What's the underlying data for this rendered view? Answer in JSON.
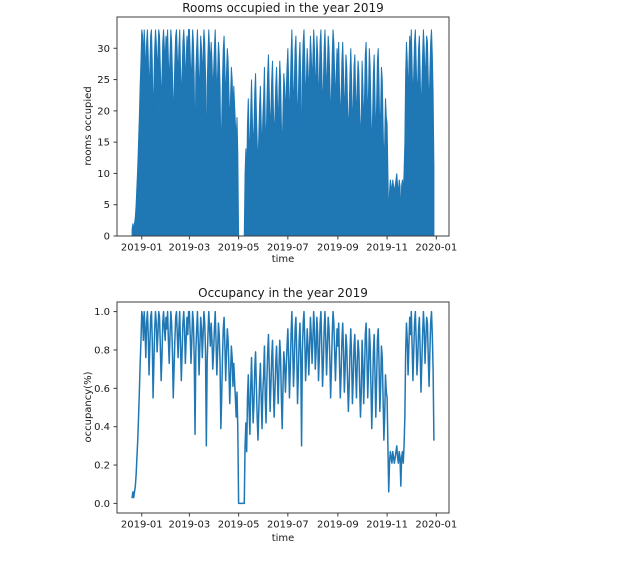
{
  "figure": {
    "background": "#ffffff",
    "accent_color": "#1f77b4"
  },
  "chart_data": [
    {
      "type": "area",
      "title": "Rooms occupied in the year 2019",
      "xlabel": "time",
      "ylabel": "rooms occupied",
      "x_start_date": "2018-12-20",
      "x_unit": "day",
      "ylim": [
        0,
        35
      ],
      "y_ticks": [
        "0",
        "5",
        "10",
        "15",
        "20",
        "25",
        "30"
      ],
      "x_ticks": [
        {
          "label": "2019-01",
          "day_index": 12
        },
        {
          "label": "2019-03",
          "day_index": 71
        },
        {
          "label": "2019-05",
          "day_index": 132
        },
        {
          "label": "2019-07",
          "day_index": 193
        },
        {
          "label": "2019-09",
          "day_index": 255
        },
        {
          "label": "2019-11",
          "day_index": 316
        },
        {
          "label": "2020-01",
          "day_index": 377
        }
      ],
      "values": [
        1,
        2,
        1,
        2,
        3,
        5,
        8,
        11,
        15,
        19,
        24,
        28,
        33,
        32,
        28,
        33,
        30,
        25,
        31,
        33,
        29,
        22,
        27,
        32,
        33,
        28,
        18,
        24,
        30,
        33,
        31,
        26,
        29,
        33,
        32,
        27,
        21,
        25,
        31,
        33,
        30,
        28,
        32,
        30,
        33,
        28,
        24,
        29,
        33,
        31,
        26,
        18,
        23,
        28,
        32,
        33,
        29,
        25,
        30,
        33,
        27,
        21,
        26,
        31,
        33,
        30,
        24,
        28,
        32,
        29,
        33,
        33,
        29,
        24,
        28,
        33,
        31,
        25,
        12,
        26,
        30,
        33,
        28,
        22,
        27,
        32,
        30,
        25,
        29,
        33,
        31,
        26,
        10,
        24,
        29,
        33,
        30,
        27,
        31,
        28,
        23,
        26,
        30,
        33,
        28,
        22,
        26,
        31,
        29,
        24,
        13,
        18,
        25,
        30,
        32,
        27,
        21,
        26,
        30,
        28,
        23,
        17,
        22,
        27,
        25,
        20,
        24,
        21,
        18,
        15,
        19,
        13,
        0,
        0,
        0,
        0,
        0,
        0,
        0,
        0,
        10,
        14,
        9,
        18,
        22,
        16,
        12,
        20,
        25,
        19,
        14,
        17,
        23,
        26,
        20,
        15,
        11,
        16,
        21,
        24,
        18,
        13,
        19,
        22,
        27,
        18,
        14,
        21,
        26,
        29,
        23,
        16,
        20,
        25,
        28,
        21,
        15,
        19,
        24,
        27,
        22,
        17,
        23,
        28,
        25,
        18,
        13,
        20,
        26,
        24,
        19,
        23,
        27,
        30,
        25,
        18,
        23,
        29,
        33,
        27,
        20,
        24,
        30,
        32,
        26,
        17,
        22,
        28,
        31,
        25,
        10,
        26,
        31,
        33,
        28,
        21,
        25,
        30,
        27,
        22,
        27,
        32,
        29,
        24,
        28,
        33,
        30,
        23,
        26,
        32,
        29,
        21,
        25,
        31,
        33,
        27,
        20,
        24,
        30,
        33,
        28,
        22,
        27,
        32,
        30,
        25,
        18,
        23,
        29,
        33,
        31,
        26,
        21,
        26,
        30,
        27,
        31,
        24,
        18,
        22,
        28,
        31,
        26,
        19,
        23,
        29,
        27,
        21,
        16,
        20,
        26,
        30,
        25,
        17,
        21,
        27,
        29,
        23,
        18,
        24,
        28,
        26,
        20,
        15,
        19,
        28,
        24,
        17,
        22,
        29,
        31,
        25,
        18,
        23,
        30,
        27,
        20,
        13,
        19,
        26,
        29,
        22,
        15,
        21,
        28,
        30,
        24,
        16,
        20,
        27,
        25,
        18,
        11,
        15,
        22,
        19,
        18,
        10,
        2,
        7,
        9,
        8,
        7,
        9,
        8,
        7,
        8,
        9,
        10,
        8,
        7,
        9,
        8,
        3,
        8,
        9,
        7,
        10,
        15,
        26,
        31,
        28,
        22,
        27,
        32,
        29,
        33,
        27,
        21,
        26,
        31,
        33,
        28,
        22,
        25,
        30,
        32,
        26,
        19,
        24,
        29,
        33,
        30,
        24,
        28,
        32,
        31,
        25,
        20,
        26,
        31,
        33,
        29,
        23,
        11
      ]
    },
    {
      "type": "line",
      "title": "Occupancy in the year 2019",
      "xlabel": "time",
      "ylabel": "occupancy(%)",
      "x_start_date": "2018-12-20",
      "x_unit": "day",
      "ylim": [
        -0.05,
        1.05
      ],
      "y_ticks": [
        "0.0",
        "0.2",
        "0.4",
        "0.6",
        "0.8",
        "1.0"
      ],
      "x_ticks": [
        {
          "label": "2019-01",
          "day_index": 12
        },
        {
          "label": "2019-03",
          "day_index": 71
        },
        {
          "label": "2019-05",
          "day_index": 132
        },
        {
          "label": "2019-07",
          "day_index": 193
        },
        {
          "label": "2019-09",
          "day_index": 255
        },
        {
          "label": "2019-11",
          "day_index": 316
        },
        {
          "label": "2020-01",
          "day_index": 377
        }
      ],
      "values": [
        0.03,
        0.06,
        0.03,
        0.06,
        0.09,
        0.15,
        0.24,
        0.33,
        0.45,
        0.58,
        0.73,
        0.85,
        1.0,
        0.97,
        0.85,
        1.0,
        0.91,
        0.76,
        0.94,
        1.0,
        0.88,
        0.67,
        0.82,
        0.97,
        1.0,
        0.85,
        0.55,
        0.73,
        0.91,
        1.0,
        0.94,
        0.79,
        0.88,
        1.0,
        0.97,
        0.82,
        0.64,
        0.76,
        0.94,
        1.0,
        0.91,
        0.85,
        0.97,
        0.91,
        1.0,
        0.85,
        0.73,
        0.88,
        1.0,
        0.94,
        0.79,
        0.55,
        0.7,
        0.85,
        0.97,
        1.0,
        0.88,
        0.76,
        0.91,
        1.0,
        0.82,
        0.64,
        0.79,
        0.94,
        1.0,
        0.91,
        0.73,
        0.85,
        0.97,
        0.88,
        1.0,
        1.0,
        0.88,
        0.73,
        0.85,
        1.0,
        0.94,
        0.76,
        0.36,
        0.79,
        0.91,
        1.0,
        0.85,
        0.67,
        0.82,
        0.97,
        0.91,
        0.76,
        0.88,
        1.0,
        0.94,
        0.79,
        0.3,
        0.73,
        0.88,
        1.0,
        0.91,
        0.82,
        0.94,
        0.85,
        0.7,
        0.79,
        0.91,
        1.0,
        0.85,
        0.67,
        0.79,
        0.94,
        0.88,
        0.73,
        0.39,
        0.55,
        0.76,
        0.91,
        0.97,
        0.82,
        0.64,
        0.79,
        0.91,
        0.85,
        0.7,
        0.52,
        0.67,
        0.82,
        0.76,
        0.61,
        0.73,
        0.64,
        0.55,
        0.45,
        0.58,
        0.39,
        0.0,
        0.0,
        0.0,
        0.0,
        0.0,
        0.0,
        0.0,
        0.0,
        0.3,
        0.42,
        0.27,
        0.55,
        0.67,
        0.48,
        0.36,
        0.61,
        0.76,
        0.58,
        0.42,
        0.52,
        0.7,
        0.79,
        0.61,
        0.45,
        0.33,
        0.48,
        0.64,
        0.73,
        0.55,
        0.39,
        0.58,
        0.67,
        0.82,
        0.55,
        0.42,
        0.64,
        0.79,
        0.88,
        0.7,
        0.48,
        0.61,
        0.76,
        0.85,
        0.64,
        0.45,
        0.58,
        0.73,
        0.82,
        0.67,
        0.52,
        0.7,
        0.85,
        0.76,
        0.55,
        0.39,
        0.61,
        0.79,
        0.73,
        0.58,
        0.7,
        0.82,
        0.91,
        0.76,
        0.55,
        0.7,
        0.88,
        1.0,
        0.82,
        0.61,
        0.73,
        0.91,
        0.97,
        0.79,
        0.52,
        0.67,
        0.85,
        0.94,
        0.76,
        0.3,
        0.79,
        0.94,
        1.0,
        0.85,
        0.64,
        0.76,
        0.91,
        0.82,
        0.67,
        0.82,
        0.97,
        0.88,
        0.73,
        0.85,
        1.0,
        0.91,
        0.7,
        0.79,
        0.97,
        0.88,
        0.64,
        0.76,
        0.94,
        1.0,
        0.82,
        0.61,
        0.73,
        0.91,
        1.0,
        0.85,
        0.67,
        0.82,
        0.97,
        0.91,
        0.76,
        0.55,
        0.7,
        0.88,
        1.0,
        0.94,
        0.79,
        0.64,
        0.79,
        0.91,
        0.82,
        0.94,
        0.73,
        0.55,
        0.67,
        0.85,
        0.94,
        0.79,
        0.58,
        0.7,
        0.88,
        0.82,
        0.64,
        0.48,
        0.61,
        0.79,
        0.91,
        0.76,
        0.52,
        0.64,
        0.82,
        0.88,
        0.7,
        0.55,
        0.73,
        0.85,
        0.79,
        0.61,
        0.45,
        0.58,
        0.85,
        0.73,
        0.52,
        0.67,
        0.88,
        0.94,
        0.76,
        0.55,
        0.7,
        0.91,
        0.82,
        0.61,
        0.39,
        0.58,
        0.79,
        0.88,
        0.67,
        0.45,
        0.64,
        0.85,
        0.91,
        0.73,
        0.48,
        0.61,
        0.82,
        0.76,
        0.55,
        0.33,
        0.45,
        0.67,
        0.58,
        0.55,
        0.3,
        0.06,
        0.21,
        0.27,
        0.24,
        0.21,
        0.27,
        0.24,
        0.21,
        0.24,
        0.27,
        0.3,
        0.24,
        0.21,
        0.27,
        0.24,
        0.09,
        0.24,
        0.27,
        0.21,
        0.3,
        0.45,
        0.79,
        0.94,
        0.85,
        0.67,
        0.82,
        0.97,
        0.88,
        1.0,
        0.82,
        0.64,
        0.79,
        0.94,
        1.0,
        0.85,
        0.67,
        0.76,
        0.91,
        0.97,
        0.79,
        0.58,
        0.73,
        0.88,
        1.0,
        0.91,
        0.73,
        0.85,
        0.97,
        0.94,
        0.76,
        0.61,
        0.79,
        0.94,
        1.0,
        0.88,
        0.7,
        0.33
      ]
    }
  ]
}
